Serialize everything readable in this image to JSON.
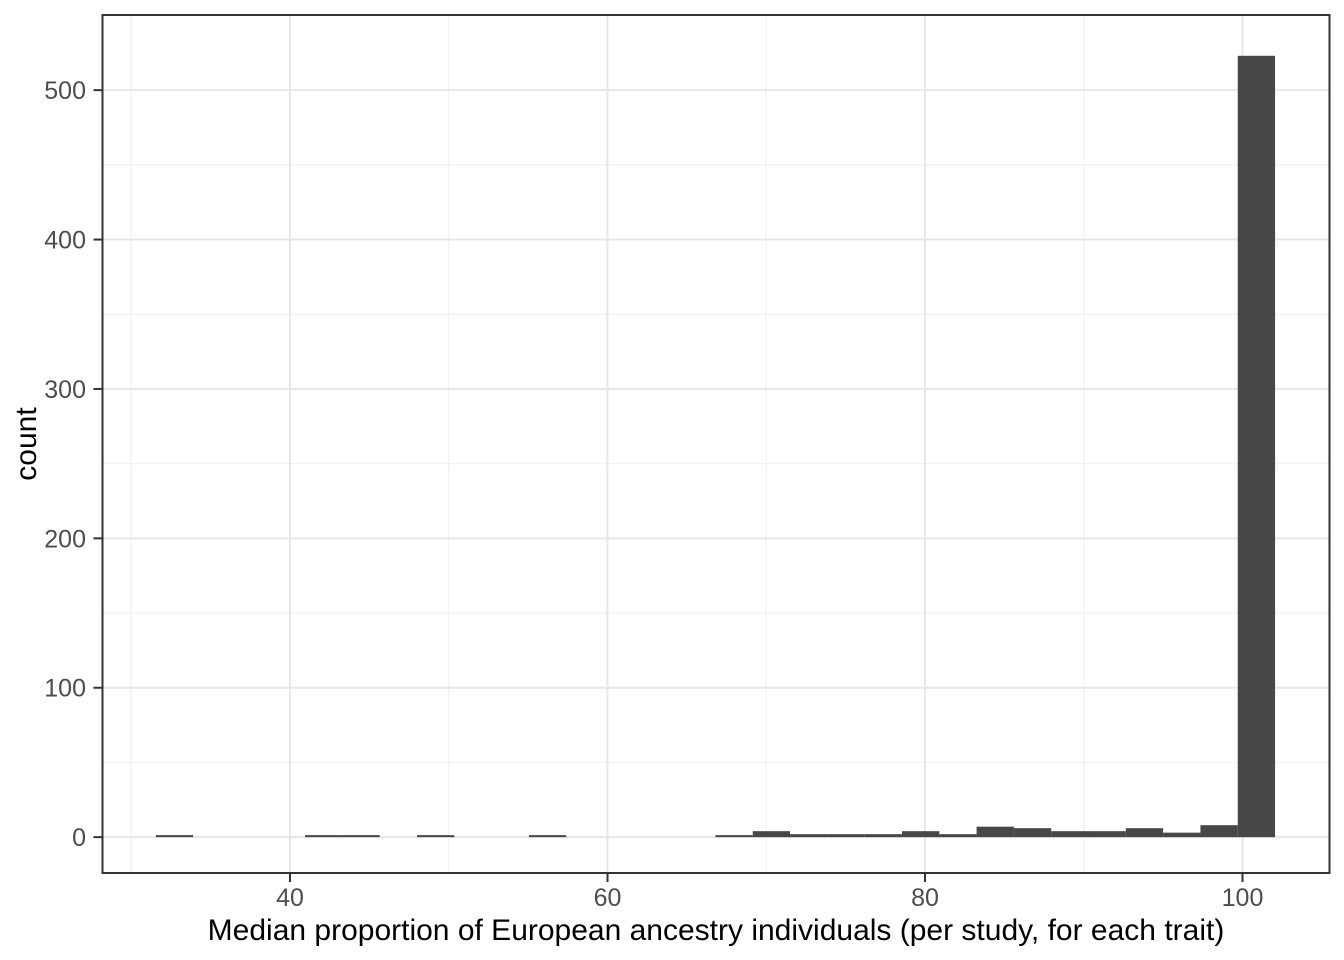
{
  "chart_data": {
    "type": "bar",
    "subtype": "histogram",
    "title": "",
    "xlabel": "Median proportion of European ancestry individuals (per study, for each trait)",
    "ylabel": "count",
    "xlim": [
      28.19,
      105.48
    ],
    "ylim": [
      -24,
      550.3
    ],
    "x_major_ticks": [
      40,
      60,
      80,
      100
    ],
    "x_minor_gridlines": [
      30,
      50,
      70,
      90
    ],
    "y_major_ticks": [
      0,
      100,
      200,
      300,
      400,
      500
    ],
    "y_minor_gridlines": [
      50,
      150,
      250,
      350,
      450
    ],
    "grid": "on",
    "legend_position": "none",
    "binwidth": 2.35,
    "bins": [
      {
        "x0": 31.55,
        "x1": 33.9,
        "count": 1
      },
      {
        "x0": 40.95,
        "x1": 43.3,
        "count": 1
      },
      {
        "x0": 43.3,
        "x1": 45.65,
        "count": 1
      },
      {
        "x0": 48.0,
        "x1": 50.35,
        "count": 1
      },
      {
        "x0": 55.05,
        "x1": 57.4,
        "count": 1
      },
      {
        "x0": 66.8,
        "x1": 69.15,
        "count": 1
      },
      {
        "x0": 69.15,
        "x1": 71.5,
        "count": 4
      },
      {
        "x0": 71.5,
        "x1": 73.85,
        "count": 2
      },
      {
        "x0": 73.85,
        "x1": 76.2,
        "count": 2
      },
      {
        "x0": 76.2,
        "x1": 78.55,
        "count": 2
      },
      {
        "x0": 78.55,
        "x1": 80.9,
        "count": 4
      },
      {
        "x0": 80.9,
        "x1": 83.25,
        "count": 2
      },
      {
        "x0": 83.25,
        "x1": 85.6,
        "count": 7
      },
      {
        "x0": 85.6,
        "x1": 87.95,
        "count": 6
      },
      {
        "x0": 87.95,
        "x1": 90.3,
        "count": 4
      },
      {
        "x0": 90.3,
        "x1": 92.65,
        "count": 4
      },
      {
        "x0": 92.65,
        "x1": 95.0,
        "count": 6
      },
      {
        "x0": 95.0,
        "x1": 97.35,
        "count": 3
      },
      {
        "x0": 97.35,
        "x1": 99.7,
        "count": 8
      },
      {
        "x0": 99.7,
        "x1": 102.05,
        "count": 523
      }
    ],
    "colors": {
      "bar_fill": "#474747",
      "panel_border": "#333333",
      "grid_major": "#e7e7e7",
      "grid_minor": "#f1f1f1",
      "tick_mark": "#333333",
      "tick_label": "#4d4d4d",
      "axis_title": "#000000",
      "background": "#ffffff"
    }
  }
}
